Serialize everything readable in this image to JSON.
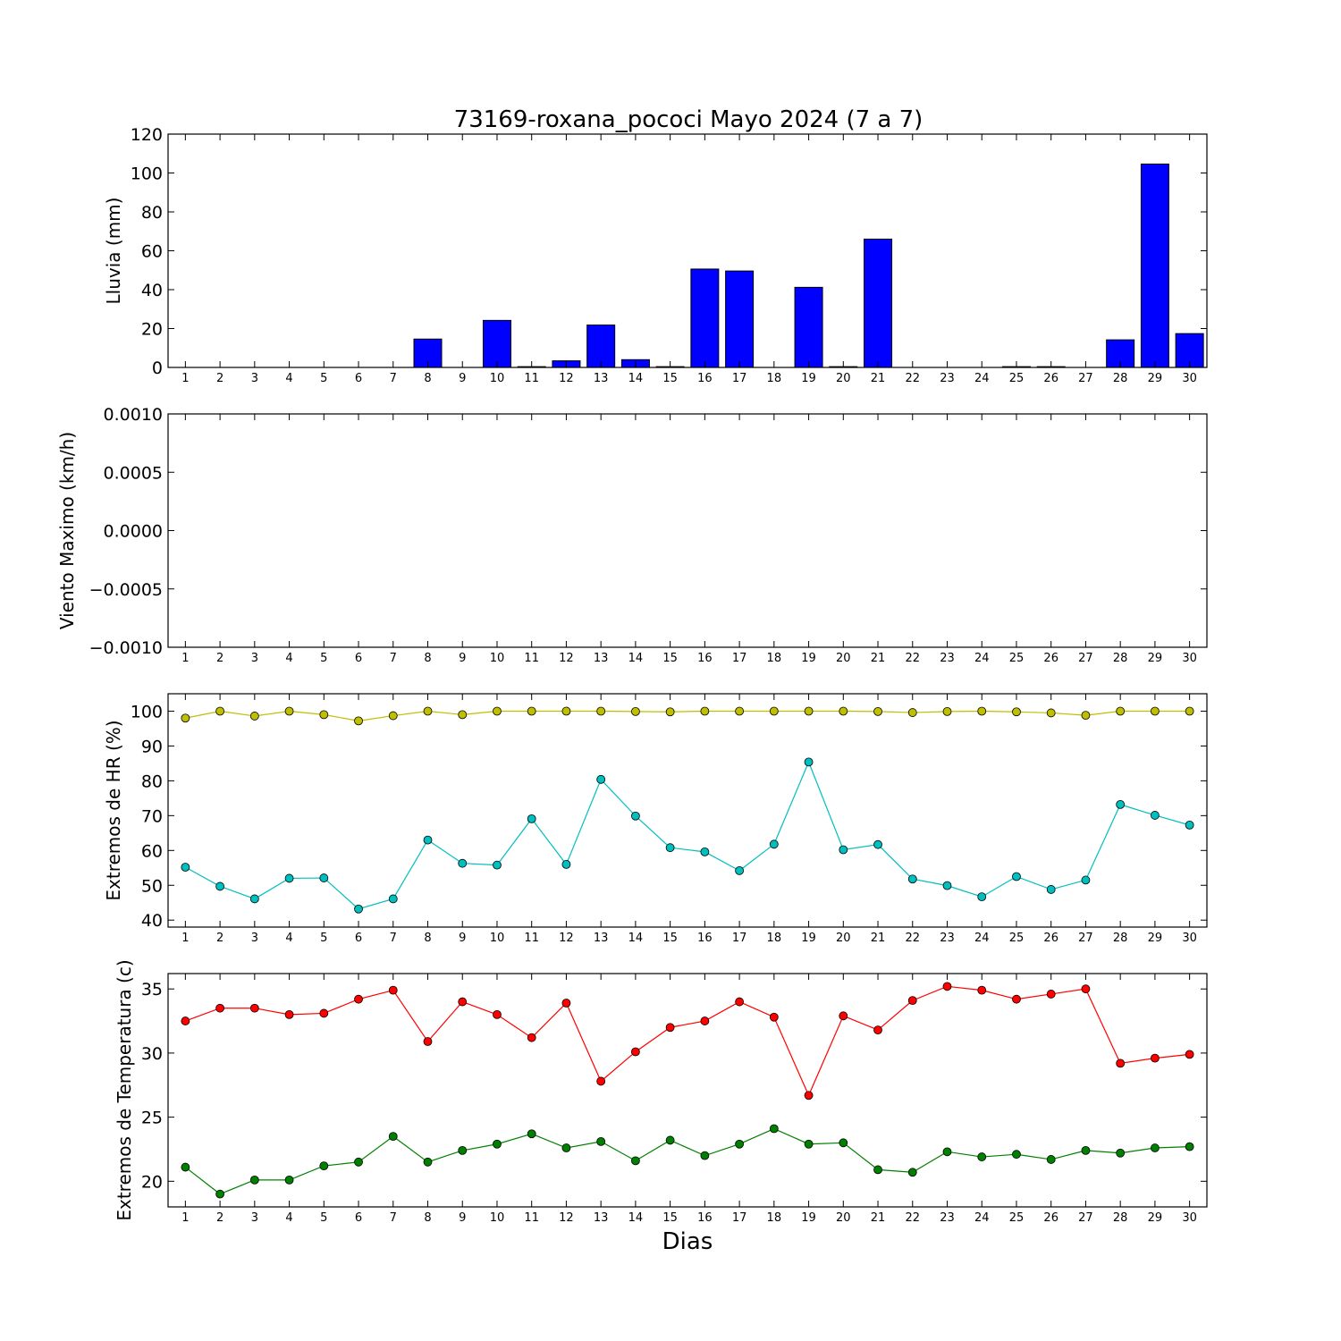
{
  "title": "73169-roxana_pococi Mayo 2024  (7 a 7)",
  "xlabel": "Dias",
  "chart_data": [
    {
      "id": "lluvia",
      "type": "bar",
      "ylabel": "Lluvia (mm)",
      "ylim": [
        0,
        120
      ],
      "yticks": [
        0,
        20,
        40,
        60,
        80,
        100,
        120
      ],
      "ytick_labels": [
        "0",
        "20",
        "40",
        "60",
        "80",
        "100",
        "120"
      ],
      "x": [
        1,
        2,
        3,
        4,
        5,
        6,
        7,
        8,
        9,
        10,
        11,
        12,
        13,
        14,
        15,
        16,
        17,
        18,
        19,
        20,
        21,
        22,
        23,
        24,
        25,
        26,
        27,
        28,
        29,
        30
      ],
      "series": [
        {
          "color": "#0000ff",
          "values": [
            0,
            0,
            0,
            0,
            0,
            0,
            0,
            14.6,
            0,
            24.2,
            0.4,
            3.4,
            21.8,
            4.0,
            0.4,
            50.6,
            49.6,
            0,
            41.2,
            0.4,
            66.0,
            0,
            0,
            0,
            0.4,
            0.4,
            0,
            14.2,
            104.6,
            17.4
          ]
        }
      ]
    },
    {
      "id": "viento",
      "type": "line",
      "ylabel": "Viento Maximo (km/h)",
      "ylim": [
        -0.001,
        0.001
      ],
      "yticks": [
        -0.001,
        -0.0005,
        0,
        0.0005,
        0.001
      ],
      "ytick_labels": [
        "−0.0010",
        "−0.0005",
        "0.0000",
        "0.0005",
        "0.0010"
      ],
      "x": [
        1,
        2,
        3,
        4,
        5,
        6,
        7,
        8,
        9,
        10,
        11,
        12,
        13,
        14,
        15,
        16,
        17,
        18,
        19,
        20,
        21,
        22,
        23,
        24,
        25,
        26,
        27,
        28,
        29,
        30
      ],
      "series": []
    },
    {
      "id": "hr",
      "type": "line",
      "ylabel": "Extremos de HR (%)",
      "ylim": [
        38,
        105
      ],
      "yticks": [
        40,
        50,
        60,
        70,
        80,
        90,
        100
      ],
      "ytick_labels": [
        "40",
        "50",
        "60",
        "70",
        "80",
        "90",
        "100"
      ],
      "x": [
        1,
        2,
        3,
        4,
        5,
        6,
        7,
        8,
        9,
        10,
        11,
        12,
        13,
        14,
        15,
        16,
        17,
        18,
        19,
        20,
        21,
        22,
        23,
        24,
        25,
        26,
        27,
        28,
        29,
        30
      ],
      "series": [
        {
          "color": "#bfbf00",
          "values": [
            98,
            100,
            98.6,
            100,
            99,
            97.2,
            98.7,
            100,
            99,
            100,
            100,
            100,
            100,
            99.9,
            99.8,
            100,
            100,
            100,
            100,
            100,
            99.9,
            99.6,
            99.9,
            100,
            99.8,
            99.5,
            98.8,
            100,
            100,
            100
          ]
        },
        {
          "color": "#00bfbf",
          "values": [
            55.2,
            49.7,
            46.1,
            52,
            52.1,
            43.2,
            46.1,
            63,
            56.3,
            55.8,
            69.1,
            56,
            80.4,
            69.9,
            60.8,
            59.6,
            54.2,
            61.8,
            85.4,
            60.2,
            61.7,
            51.8,
            49.9,
            46.7,
            52.5,
            48.8,
            51.5,
            73.2,
            70.1,
            67.3
          ]
        }
      ]
    },
    {
      "id": "temp",
      "type": "line",
      "ylabel": "Extremos de Temperatura (c)",
      "ylim": [
        18,
        36.2
      ],
      "yticks": [
        20,
        25,
        30,
        35
      ],
      "ytick_labels": [
        "20",
        "25",
        "30",
        "35"
      ],
      "x": [
        1,
        2,
        3,
        4,
        5,
        6,
        7,
        8,
        9,
        10,
        11,
        12,
        13,
        14,
        15,
        16,
        17,
        18,
        19,
        20,
        21,
        22,
        23,
        24,
        25,
        26,
        27,
        28,
        29,
        30
      ],
      "series": [
        {
          "color": "#ff0000",
          "values": [
            32.5,
            33.5,
            33.5,
            33,
            33.1,
            34.2,
            34.9,
            30.9,
            34,
            33,
            31.2,
            33.9,
            27.8,
            30.1,
            32,
            32.5,
            34,
            32.8,
            26.7,
            32.9,
            31.8,
            34.1,
            35.2,
            34.9,
            34.2,
            34.6,
            35,
            29.2,
            29.6,
            29.9
          ]
        },
        {
          "color": "#008000",
          "values": [
            21.1,
            19,
            20.1,
            20.1,
            21.2,
            21.5,
            23.5,
            21.5,
            22.4,
            22.9,
            23.7,
            22.6,
            23.1,
            21.6,
            23.2,
            22,
            22.9,
            24.1,
            22.9,
            23,
            20.9,
            20.7,
            22.3,
            21.9,
            22.1,
            21.7,
            22.4,
            22.2,
            22.6,
            22.7
          ]
        }
      ]
    }
  ]
}
